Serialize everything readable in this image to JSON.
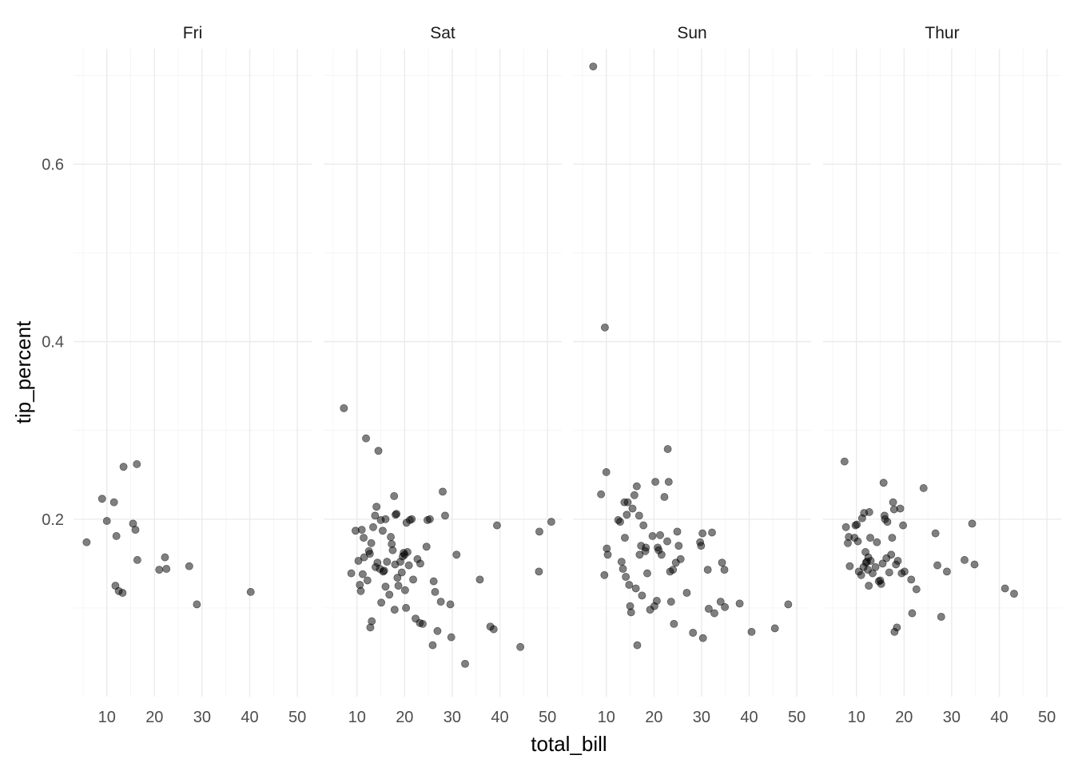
{
  "chart_data": {
    "type": "scatter",
    "xlabel": "total_bill",
    "ylabel": "tip_percent",
    "xlim": [
      3,
      53
    ],
    "ylim": [
      0.0,
      0.73
    ],
    "x_ticks": [
      10,
      20,
      30,
      40,
      50
    ],
    "y_ticks": [
      0.2,
      0.4,
      0.6
    ],
    "y_tick_labels": [
      "0.2",
      "0.4",
      "0.6"
    ],
    "grid": true,
    "legend": "none",
    "point_color": "#000000",
    "point_alpha": 0.5,
    "panels": [
      {
        "name": "Fri",
        "points": [
          [
            5.75,
            0.174
          ],
          [
            9.0,
            0.223
          ],
          [
            10.0,
            0.198
          ],
          [
            11.5,
            0.219
          ],
          [
            11.8,
            0.125
          ],
          [
            12.0,
            0.181
          ],
          [
            12.5,
            0.119
          ],
          [
            13.3,
            0.117
          ],
          [
            13.5,
            0.259
          ],
          [
            15.5,
            0.195
          ],
          [
            16.0,
            0.188
          ],
          [
            16.3,
            0.262
          ],
          [
            16.4,
            0.154
          ],
          [
            21.0,
            0.143
          ],
          [
            22.2,
            0.157
          ],
          [
            22.5,
            0.144
          ],
          [
            27.3,
            0.147
          ],
          [
            28.9,
            0.104
          ],
          [
            40.2,
            0.118
          ]
        ]
      },
      {
        "name": "Sat",
        "points": [
          [
            7.25,
            0.325
          ],
          [
            8.8,
            0.139
          ],
          [
            9.7,
            0.187
          ],
          [
            10.3,
            0.153
          ],
          [
            10.6,
            0.126
          ],
          [
            10.8,
            0.119
          ],
          [
            11.0,
            0.188
          ],
          [
            11.2,
            0.138
          ],
          [
            11.4,
            0.179
          ],
          [
            11.5,
            0.157
          ],
          [
            11.9,
            0.291
          ],
          [
            12.2,
            0.131
          ],
          [
            12.5,
            0.164
          ],
          [
            12.7,
            0.161
          ],
          [
            12.8,
            0.078
          ],
          [
            13.0,
            0.173
          ],
          [
            13.1,
            0.085
          ],
          [
            13.4,
            0.191
          ],
          [
            13.8,
            0.204
          ],
          [
            13.9,
            0.146
          ],
          [
            14.1,
            0.214
          ],
          [
            14.3,
            0.151
          ],
          [
            14.5,
            0.277
          ],
          [
            14.8,
            0.144
          ],
          [
            15.0,
            0.199
          ],
          [
            15.1,
            0.106
          ],
          [
            15.4,
            0.187
          ],
          [
            15.5,
            0.141
          ],
          [
            15.7,
            0.142
          ],
          [
            16.0,
            0.2
          ],
          [
            16.0,
            0.124
          ],
          [
            16.3,
            0.152
          ],
          [
            16.8,
            0.115
          ],
          [
            17.1,
            0.18
          ],
          [
            17.3,
            0.172
          ],
          [
            17.5,
            0.165
          ],
          [
            17.8,
            0.226
          ],
          [
            17.9,
            0.098
          ],
          [
            18.0,
            0.149
          ],
          [
            18.1,
            0.205
          ],
          [
            18.3,
            0.206
          ],
          [
            18.5,
            0.134
          ],
          [
            18.7,
            0.125
          ],
          [
            19.1,
            0.152
          ],
          [
            19.4,
            0.14
          ],
          [
            19.6,
            0.158
          ],
          [
            19.8,
            0.162
          ],
          [
            20.0,
            0.16
          ],
          [
            20.1,
            0.12
          ],
          [
            20.3,
            0.1
          ],
          [
            20.4,
            0.196
          ],
          [
            20.6,
            0.163
          ],
          [
            20.9,
            0.148
          ],
          [
            21.1,
            0.199
          ],
          [
            21.5,
            0.2
          ],
          [
            21.8,
            0.132
          ],
          [
            22.3,
            0.088
          ],
          [
            22.7,
            0.155
          ],
          [
            23.2,
            0.083
          ],
          [
            23.3,
            0.15
          ],
          [
            23.8,
            0.082
          ],
          [
            24.6,
            0.169
          ],
          [
            24.8,
            0.199
          ],
          [
            25.3,
            0.2
          ],
          [
            25.9,
            0.058
          ],
          [
            26.1,
            0.13
          ],
          [
            26.4,
            0.118
          ],
          [
            26.9,
            0.074
          ],
          [
            27.6,
            0.107
          ],
          [
            28.0,
            0.231
          ],
          [
            28.5,
            0.204
          ],
          [
            29.6,
            0.104
          ],
          [
            29.8,
            0.067
          ],
          [
            30.9,
            0.16
          ],
          [
            32.7,
            0.037
          ],
          [
            35.8,
            0.132
          ],
          [
            38.0,
            0.079
          ],
          [
            38.7,
            0.076
          ],
          [
            39.4,
            0.193
          ],
          [
            44.3,
            0.056
          ],
          [
            48.2,
            0.141
          ],
          [
            48.3,
            0.186
          ],
          [
            50.8,
            0.197
          ]
        ]
      },
      {
        "name": "Sun",
        "points": [
          [
            7.25,
            0.71
          ],
          [
            8.9,
            0.228
          ],
          [
            9.6,
            0.137
          ],
          [
            9.7,
            0.416
          ],
          [
            10.0,
            0.253
          ],
          [
            10.1,
            0.167
          ],
          [
            10.3,
            0.16
          ],
          [
            12.5,
            0.199
          ],
          [
            12.9,
            0.197
          ],
          [
            13.2,
            0.152
          ],
          [
            13.5,
            0.144
          ],
          [
            13.8,
            0.219
          ],
          [
            13.9,
            0.179
          ],
          [
            14.1,
            0.135
          ],
          [
            14.3,
            0.205
          ],
          [
            14.5,
            0.219
          ],
          [
            14.8,
            0.126
          ],
          [
            15.0,
            0.102
          ],
          [
            15.2,
            0.095
          ],
          [
            15.5,
            0.212
          ],
          [
            15.9,
            0.227
          ],
          [
            16.2,
            0.122
          ],
          [
            16.4,
            0.237
          ],
          [
            16.5,
            0.058
          ],
          [
            16.9,
            0.204
          ],
          [
            17.0,
            0.16
          ],
          [
            17.3,
            0.17
          ],
          [
            17.5,
            0.114
          ],
          [
            17.8,
            0.193
          ],
          [
            18.2,
            0.164
          ],
          [
            18.3,
            0.168
          ],
          [
            18.6,
            0.139
          ],
          [
            19.2,
            0.098
          ],
          [
            19.7,
            0.181
          ],
          [
            20.1,
            0.102
          ],
          [
            20.3,
            0.242
          ],
          [
            20.6,
            0.108
          ],
          [
            20.8,
            0.168
          ],
          [
            21.0,
            0.165
          ],
          [
            21.3,
            0.182
          ],
          [
            21.6,
            0.16
          ],
          [
            22.2,
            0.225
          ],
          [
            22.8,
            0.175
          ],
          [
            22.9,
            0.279
          ],
          [
            23.1,
            0.242
          ],
          [
            23.4,
            0.141
          ],
          [
            23.6,
            0.107
          ],
          [
            24.0,
            0.143
          ],
          [
            24.2,
            0.082
          ],
          [
            24.6,
            0.151
          ],
          [
            24.9,
            0.186
          ],
          [
            25.2,
            0.17
          ],
          [
            25.6,
            0.155
          ],
          [
            26.9,
            0.117
          ],
          [
            28.2,
            0.072
          ],
          [
            29.7,
            0.174
          ],
          [
            29.9,
            0.17
          ],
          [
            30.2,
            0.184
          ],
          [
            30.3,
            0.066
          ],
          [
            31.3,
            0.143
          ],
          [
            31.5,
            0.099
          ],
          [
            32.2,
            0.185
          ],
          [
            32.7,
            0.094
          ],
          [
            34.0,
            0.107
          ],
          [
            34.3,
            0.151
          ],
          [
            34.8,
            0.143
          ],
          [
            34.9,
            0.101
          ],
          [
            38.0,
            0.105
          ],
          [
            40.5,
            0.073
          ],
          [
            45.4,
            0.077
          ],
          [
            48.2,
            0.104
          ]
        ]
      },
      {
        "name": "Thur",
        "points": [
          [
            7.5,
            0.265
          ],
          [
            7.8,
            0.191
          ],
          [
            8.2,
            0.173
          ],
          [
            8.4,
            0.18
          ],
          [
            8.6,
            0.147
          ],
          [
            9.6,
            0.179
          ],
          [
            9.8,
            0.193
          ],
          [
            10.1,
            0.194
          ],
          [
            10.3,
            0.175
          ],
          [
            10.5,
            0.141
          ],
          [
            11.0,
            0.137
          ],
          [
            11.2,
            0.201
          ],
          [
            11.5,
            0.146
          ],
          [
            11.6,
            0.207
          ],
          [
            11.9,
            0.163
          ],
          [
            12.0,
            0.151
          ],
          [
            12.2,
            0.152
          ],
          [
            12.4,
            0.143
          ],
          [
            12.5,
            0.157
          ],
          [
            12.6,
            0.125
          ],
          [
            12.7,
            0.208
          ],
          [
            12.9,
            0.179
          ],
          [
            13.0,
            0.153
          ],
          [
            13.4,
            0.139
          ],
          [
            14.0,
            0.146
          ],
          [
            14.3,
            0.174
          ],
          [
            14.7,
            0.13
          ],
          [
            15.0,
            0.131
          ],
          [
            15.2,
            0.127
          ],
          [
            15.5,
            0.15
          ],
          [
            15.7,
            0.241
          ],
          [
            15.9,
            0.204
          ],
          [
            16.0,
            0.2
          ],
          [
            16.3,
            0.156
          ],
          [
            16.5,
            0.197
          ],
          [
            16.9,
            0.14
          ],
          [
            17.3,
            0.16
          ],
          [
            17.5,
            0.179
          ],
          [
            17.7,
            0.219
          ],
          [
            17.9,
            0.211
          ],
          [
            18.0,
            0.073
          ],
          [
            18.3,
            0.149
          ],
          [
            18.5,
            0.078
          ],
          [
            18.7,
            0.153
          ],
          [
            19.2,
            0.212
          ],
          [
            19.5,
            0.139
          ],
          [
            19.8,
            0.193
          ],
          [
            20.1,
            0.141
          ],
          [
            21.5,
            0.132
          ],
          [
            21.7,
            0.094
          ],
          [
            22.6,
            0.121
          ],
          [
            24.1,
            0.235
          ],
          [
            26.6,
            0.184
          ],
          [
            27.0,
            0.148
          ],
          [
            27.8,
            0.09
          ],
          [
            29.0,
            0.141
          ],
          [
            32.7,
            0.154
          ],
          [
            34.3,
            0.195
          ],
          [
            34.8,
            0.149
          ],
          [
            41.2,
            0.122
          ],
          [
            43.1,
            0.116
          ]
        ]
      }
    ]
  }
}
